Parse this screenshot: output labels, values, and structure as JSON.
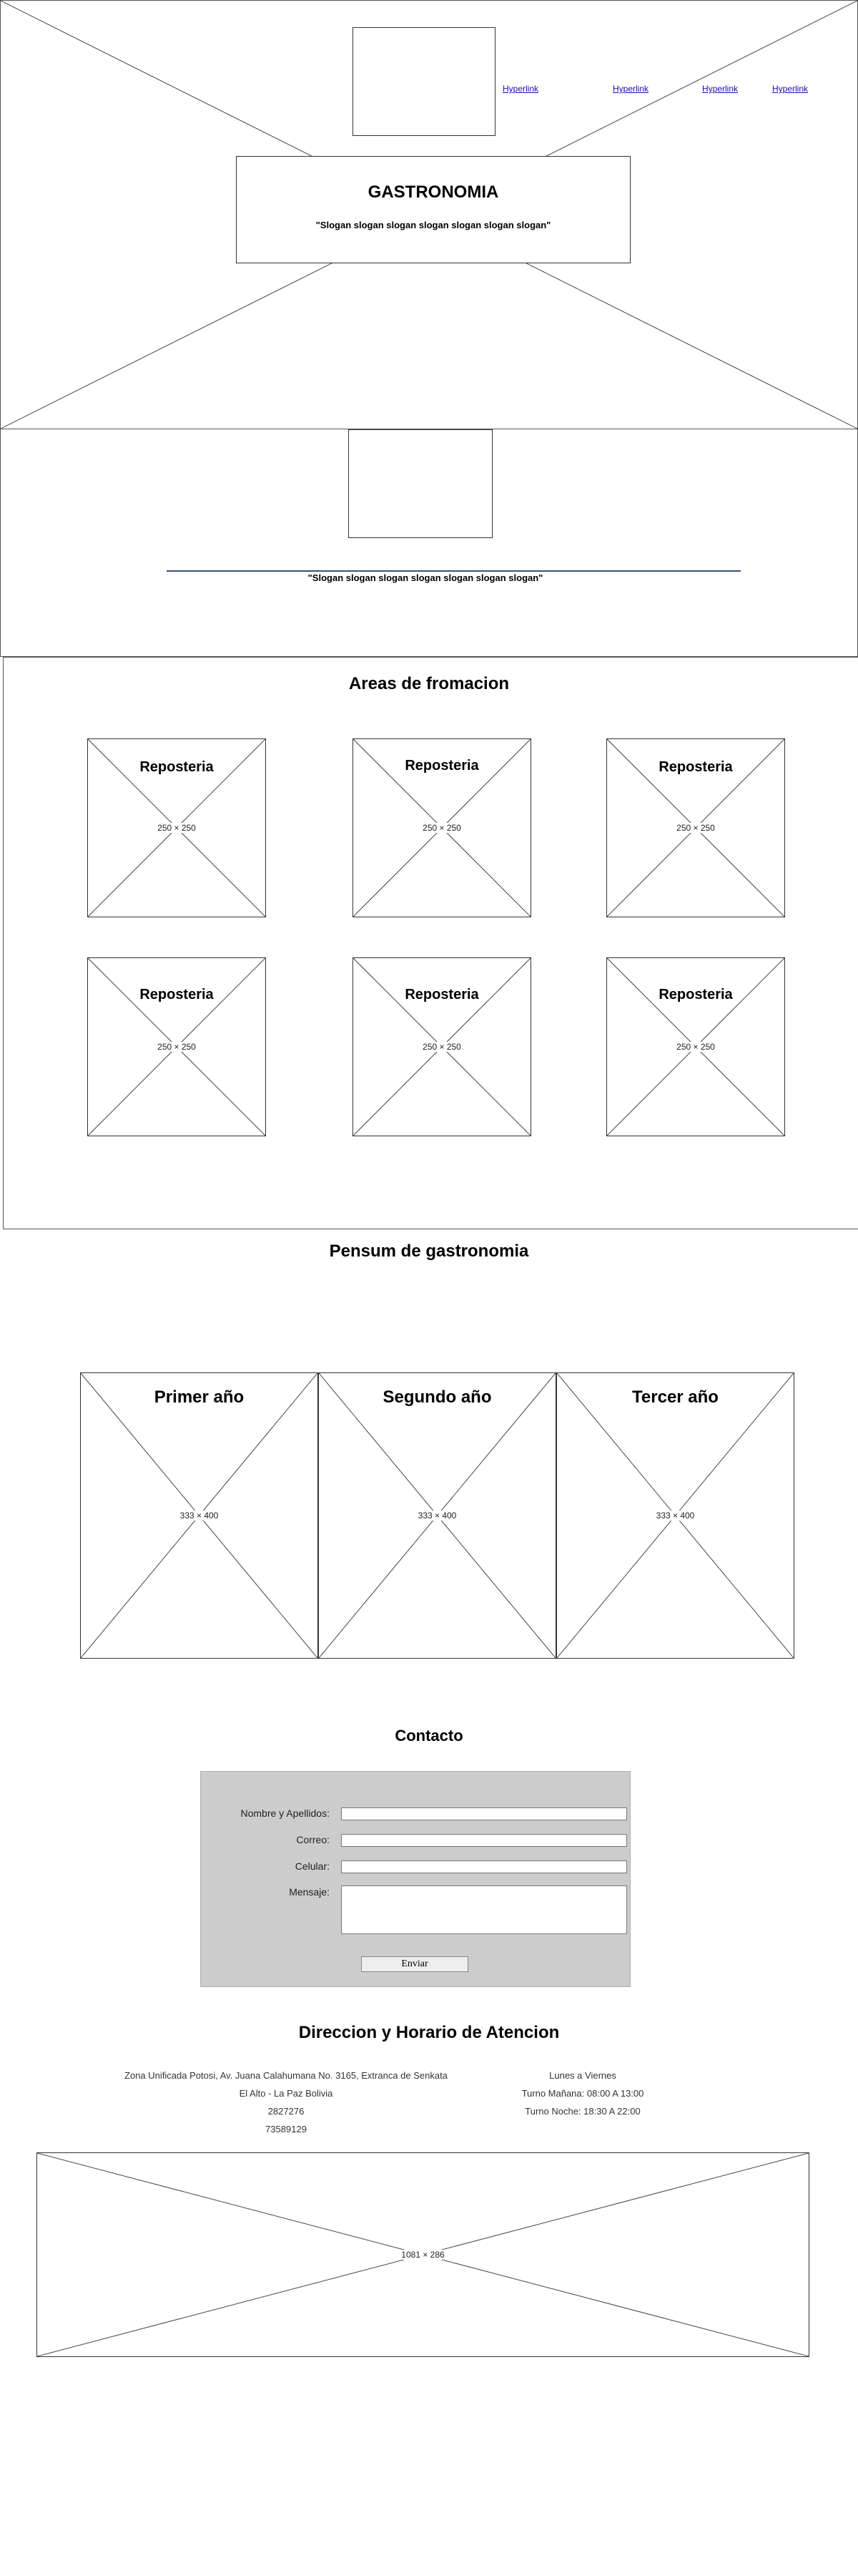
{
  "header": {
    "links": [
      "Hyperlink",
      "Hyperlink",
      "Hyperlink",
      "Hyperlink"
    ],
    "title": "GASTRONOMIA",
    "slogan": "\"Slogan slogan slogan slogan slogan slogan slogan\""
  },
  "banner": {
    "slogan": "\"Slogan slogan slogan slogan slogan slogan slogan\""
  },
  "areas": {
    "title": "Areas de fromacion",
    "cards": [
      {
        "label": "Reposteria",
        "size": "250 × 250"
      },
      {
        "label": "Reposteria",
        "size": "250 × 250"
      },
      {
        "label": "Reposteria",
        "size": "250 × 250"
      },
      {
        "label": "Reposteria",
        "size": "250 × 250"
      },
      {
        "label": "Reposteria",
        "size": "250 × 250"
      },
      {
        "label": "Reposteria",
        "size": "250 × 250"
      }
    ]
  },
  "pensum": {
    "title": "Pensum de gastronomia",
    "cards": [
      {
        "label": "Primer año",
        "size": "333 × 400"
      },
      {
        "label": "Segundo año",
        "size": "333 × 400"
      },
      {
        "label": "Tercer año",
        "size": "333 × 400"
      }
    ]
  },
  "contact": {
    "title": "Contacto",
    "fields": {
      "name_label": "Nombre y Apellidos:",
      "email_label": "Correo:",
      "phone_label": "Celular:",
      "message_label": "Mensaje:"
    },
    "submit_label": "Enviar"
  },
  "address": {
    "title": "Direccion y Horario de Atencion",
    "lines": [
      "Zona Unificada Potosi, Av. Juana Calahumana No. 3165, Extranca de Senkata",
      "El Alto - La Paz Bolivia",
      "2827276",
      "73589129"
    ],
    "schedule": [
      "Lunes a Viernes",
      "Turno Mañana: 08:00 A 13:00",
      "Turno Noche: 18:30 A 22:00"
    ],
    "map_size": "1081 × 286"
  }
}
